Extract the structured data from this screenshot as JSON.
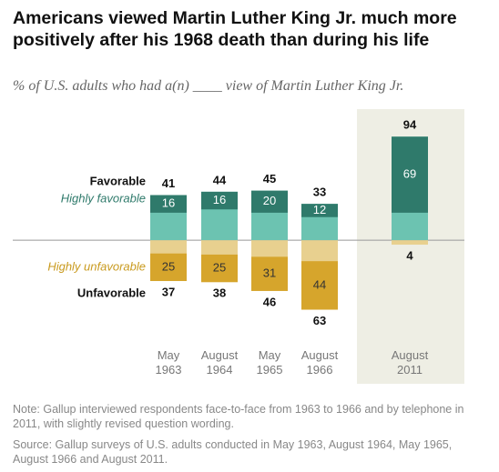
{
  "chart_data": {
    "type": "diverging-bar",
    "title": "Americans viewed Martin Luther King Jr. much more positively after his 1968 death than during his life",
    "subtitle": "% of U.S. adults who had a(n) ____ view of Martin Luther King Jr.",
    "categories": [
      "May 1963",
      "August 1964",
      "May 1965",
      "August 1966",
      "August 2011"
    ],
    "series": [
      {
        "name": "Favorable",
        "color": "#6cc3b1",
        "values": [
          41,
          44,
          45,
          33,
          94
        ]
      },
      {
        "name": "Highly favorable",
        "color": "#2f7a6b",
        "values": [
          16,
          16,
          20,
          12,
          69
        ]
      },
      {
        "name": "Highly unfavorable",
        "color": "#d6a52c",
        "values": [
          25,
          25,
          31,
          44,
          null
        ]
      },
      {
        "name": "Unfavorable",
        "color": "#e8d08f",
        "values": [
          37,
          38,
          46,
          63,
          4
        ]
      }
    ],
    "ylim": [
      -70,
      100
    ],
    "note": "Note: Gallup interviewed respondents face-to-face from 1963 to 1966 and by telephone in 2011, with slightly revised question wording.",
    "source": "Source: Gallup surveys of U.S. adults conducted in May 1963, August 1964, May 1965, August 1966 and August 2011."
  }
}
